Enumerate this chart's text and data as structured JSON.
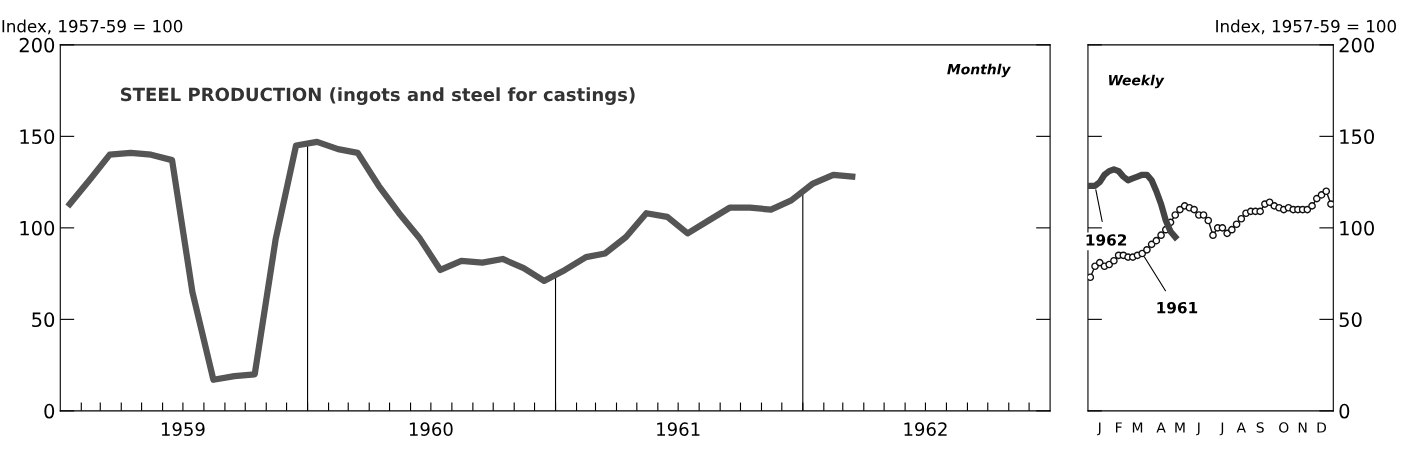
{
  "chart_data": [
    {
      "type": "line",
      "title": "STEEL PRODUCTION (ingots and steel for castings)",
      "ylabel": "Index, 1957-59 = 100",
      "annotations": [
        "Monthly"
      ],
      "x": [
        "1959-01-15",
        "1959-02-15",
        "1959-03-15",
        "1959-04-15",
        "1959-05-15",
        "1959-06-15",
        "1959-07-15",
        "1959-08-15",
        "1959-09-15",
        "1959-10-15",
        "1959-11-15",
        "1959-12-15",
        "1960-01-15",
        "1960-02-15",
        "1960-03-15",
        "1960-04-15",
        "1960-05-15",
        "1960-06-15",
        "1960-07-15",
        "1960-08-15",
        "1960-09-15",
        "1960-10-15",
        "1960-11-15",
        "1960-12-15",
        "1961-01-15",
        "1961-02-15",
        "1961-03-15",
        "1961-04-15",
        "1961-05-15",
        "1961-06-15",
        "1961-07-15",
        "1961-08-15",
        "1961-09-15",
        "1961-10-15",
        "1961-11-15",
        "1961-12-15",
        "1962-01-15",
        "1962-02-15",
        "1962-03-15"
      ],
      "series": [
        {
          "color": "#555555",
          "values": [
            113,
            127,
            140,
            141,
            140,
            137,
            65,
            17,
            19,
            20,
            94,
            145,
            147,
            143,
            141,
            123,
            108,
            94,
            77,
            82,
            81,
            83,
            78,
            71,
            77,
            84,
            86,
            95,
            108,
            106,
            97,
            104,
            111,
            111,
            110,
            115,
            124,
            129,
            128
          ]
        }
      ],
      "xlim": [
        "1959-01-01",
        "1963-01-01"
      ],
      "xticks": [
        {
          "value": "1959-02-01",
          "label": null
        },
        {
          "value": "1959-03-01",
          "label": null
        },
        {
          "value": "1959-04-01",
          "label": null
        },
        {
          "value": "1959-05-01",
          "label": null
        },
        {
          "value": "1959-06-01",
          "label": null
        },
        {
          "value": "1959-07-01",
          "label": "1959"
        },
        {
          "value": "1959-08-01",
          "label": null
        },
        {
          "value": "1959-09-01",
          "label": null
        },
        {
          "value": "1959-10-01",
          "label": null
        },
        {
          "value": "1959-11-01",
          "label": null
        },
        {
          "value": "1959-12-01",
          "label": null
        },
        {
          "value": "1960-01-01",
          "label": null
        },
        {
          "value": "1960-02-01",
          "label": null
        },
        {
          "value": "1960-03-01",
          "label": null
        },
        {
          "value": "1960-04-01",
          "label": null
        },
        {
          "value": "1960-05-01",
          "label": null
        },
        {
          "value": "1960-06-01",
          "label": null
        },
        {
          "value": "1960-07-01",
          "label": "1960"
        },
        {
          "value": "1960-08-01",
          "label": null
        },
        {
          "value": "1960-09-01",
          "label": null
        },
        {
          "value": "1960-10-01",
          "label": null
        },
        {
          "value": "1960-11-01",
          "label": null
        },
        {
          "value": "1960-12-01",
          "label": null
        },
        {
          "value": "1961-01-01",
          "label": null
        },
        {
          "value": "1961-02-01",
          "label": null
        },
        {
          "value": "1961-03-01",
          "label": null
        },
        {
          "value": "1961-04-01",
          "label": null
        },
        {
          "value": "1961-05-01",
          "label": null
        },
        {
          "value": "1961-06-01",
          "label": null
        },
        {
          "value": "1961-07-01",
          "label": "1961"
        },
        {
          "value": "1961-08-01",
          "label": null
        },
        {
          "value": "1961-09-01",
          "label": null
        },
        {
          "value": "1961-10-01",
          "label": null
        },
        {
          "value": "1961-11-01",
          "label": null
        },
        {
          "value": "1961-12-01",
          "label": null
        },
        {
          "value": "1962-01-01",
          "label": null
        },
        {
          "value": "1962-02-01",
          "label": null
        },
        {
          "value": "1962-03-01",
          "label": null
        },
        {
          "value": "1962-04-01",
          "label": null
        },
        {
          "value": "1962-05-01",
          "label": null
        },
        {
          "value": "1962-06-01",
          "label": null
        },
        {
          "value": "1962-07-01",
          "label": "1962"
        },
        {
          "value": "1962-08-01",
          "label": null
        },
        {
          "value": "1962-09-01",
          "label": null
        },
        {
          "value": "1962-10-01",
          "label": null
        },
        {
          "value": "1962-11-01",
          "label": null
        },
        {
          "value": "1962-12-01",
          "label": null
        }
      ],
      "ylim": [
        0,
        200
      ],
      "yticks": [
        0,
        50,
        100,
        150,
        200
      ],
      "ref_lines": [
        {
          "axis": "x",
          "value": "1960-01-01",
          "color": "#000000"
        },
        {
          "axis": "x",
          "value": "1961-01-01",
          "color": "#000000"
        },
        {
          "axis": "x",
          "value": "1962-01-01",
          "color": "#000000"
        }
      ],
      "grid": false,
      "legend": false
    },
    {
      "type": "line",
      "ylabel": "Index, 1957-59 = 100",
      "annotations": [
        "Weekly"
      ],
      "series": [
        {
          "name": "1961",
          "color": "#111111",
          "marker": "circle",
          "values": [
            73,
            79,
            81,
            79,
            80,
            82,
            85,
            85,
            84,
            84,
            85,
            86,
            88,
            91,
            93,
            96,
            99,
            103,
            107,
            110,
            112,
            111,
            110,
            107,
            107,
            104,
            96,
            100,
            100,
            97,
            99,
            102,
            105,
            108,
            109,
            109,
            109,
            113,
            114,
            112,
            111,
            110,
            111,
            110,
            110,
            110,
            110,
            112,
            116,
            118,
            120,
            113
          ]
        },
        {
          "name": "1962",
          "color": "#444444",
          "marker": "none",
          "values": [
            123,
            123,
            125,
            129,
            131,
            132,
            131,
            128,
            126,
            127,
            128,
            129,
            129,
            126,
            120,
            113,
            104,
            98,
            95,
            null,
            null,
            null,
            null,
            null,
            null,
            null,
            null,
            null,
            null,
            null,
            null,
            null,
            null,
            null,
            null,
            null,
            null,
            null,
            null,
            null,
            null,
            null,
            null,
            null,
            null,
            null,
            null,
            null,
            null,
            null,
            null,
            null
          ]
        }
      ],
      "categories": [
        null,
        null,
        "J",
        null,
        null,
        null,
        "F",
        null,
        null,
        null,
        "M",
        null,
        null,
        null,
        null,
        "A",
        null,
        null,
        null,
        "M",
        null,
        null,
        null,
        "J",
        null,
        null,
        null,
        null,
        "J",
        null,
        null,
        null,
        "A",
        null,
        null,
        null,
        "S",
        null,
        null,
        null,
        null,
        "O",
        null,
        null,
        null,
        "N",
        null,
        null,
        null,
        "D",
        null,
        null
      ],
      "ylim": [
        0,
        200
      ],
      "yticks": [
        0,
        50,
        100,
        150,
        200
      ],
      "grid": false,
      "legend": false
    }
  ]
}
